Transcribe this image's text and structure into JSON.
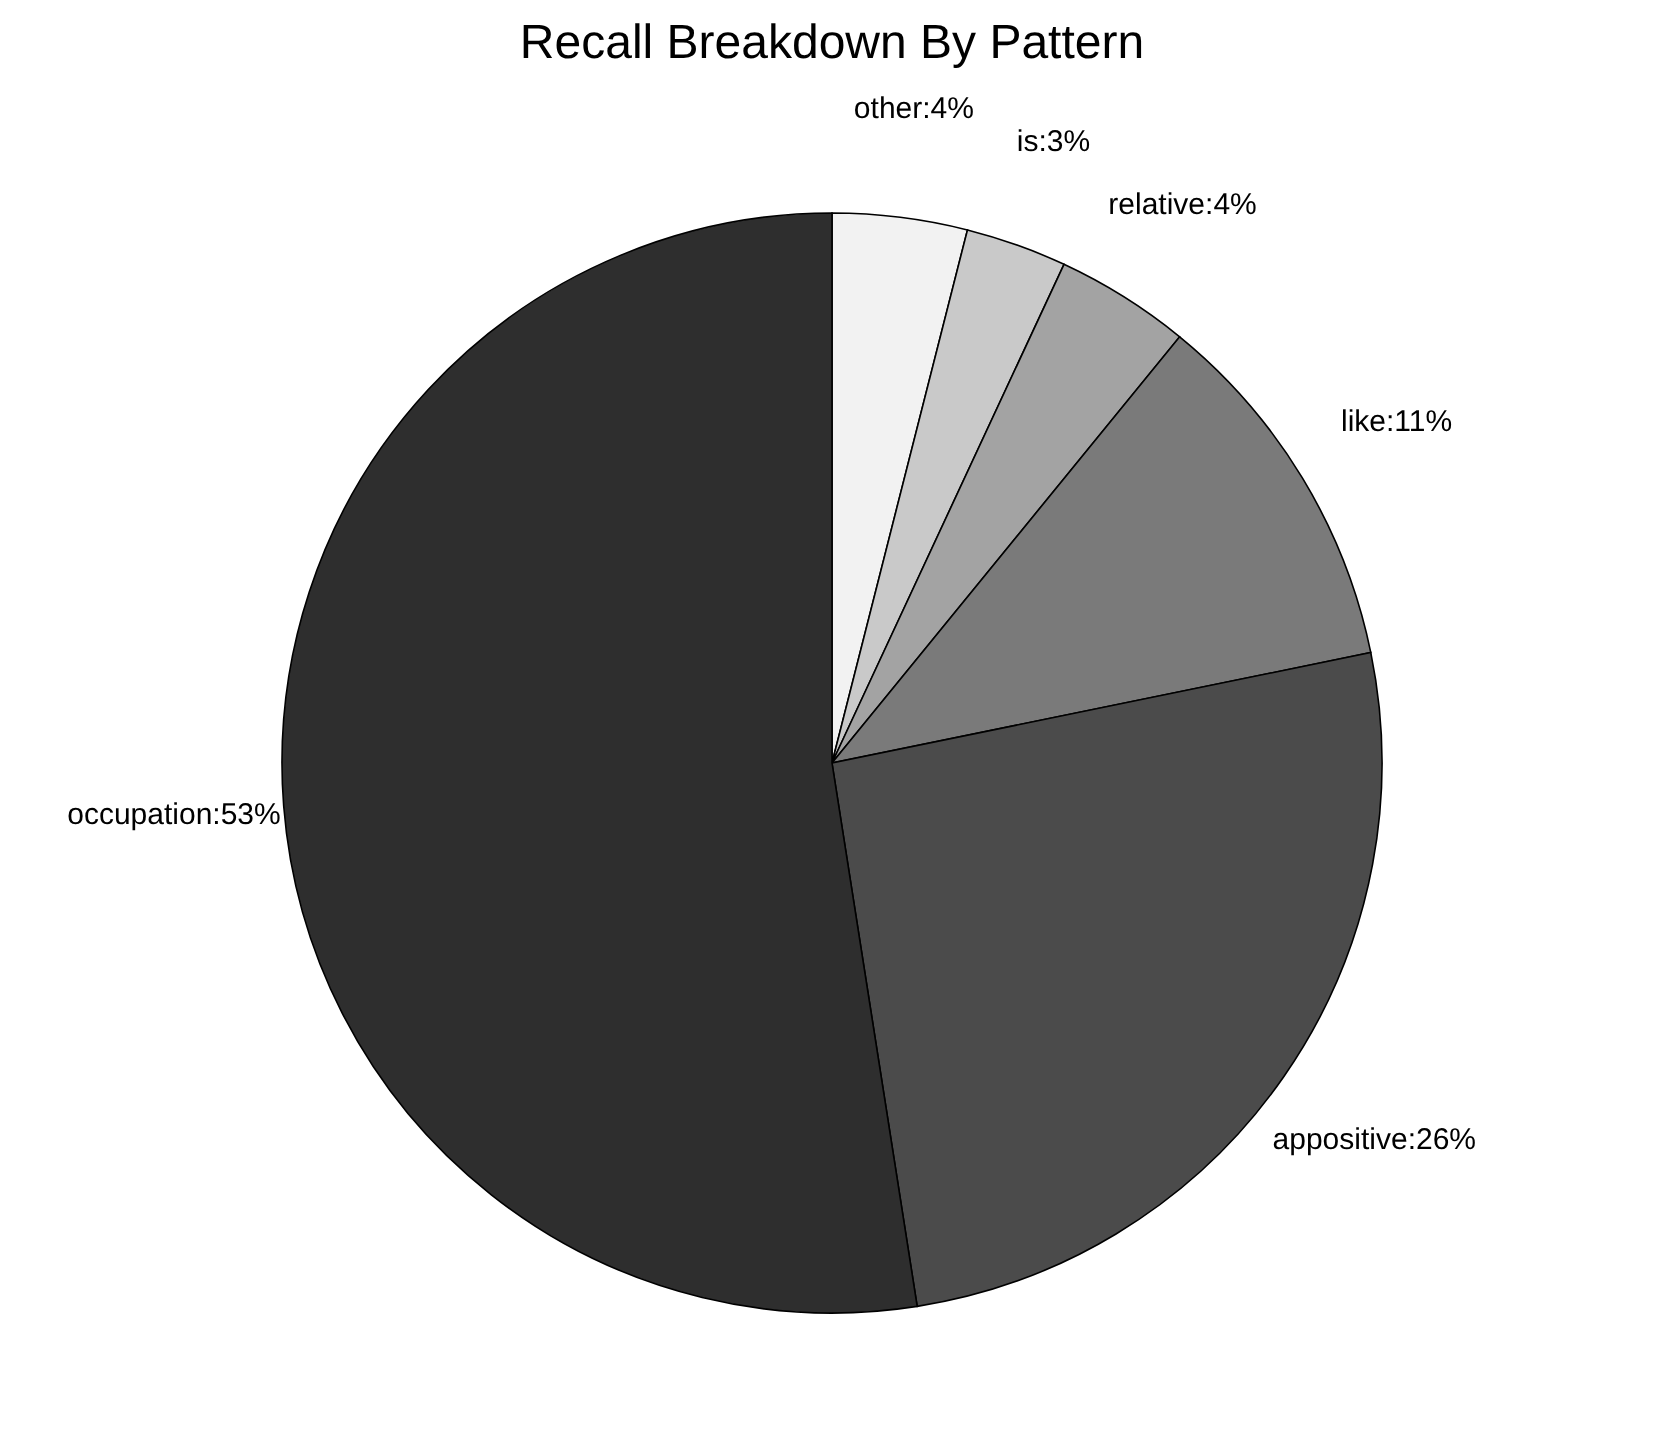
{
  "chart_data": {
    "type": "pie",
    "title": "Recall Breakdown By Pattern",
    "categories": [
      "other",
      "is",
      "relative",
      "like",
      "appositive",
      "occupation"
    ],
    "values": [
      4,
      3,
      4,
      11,
      26,
      53
    ],
    "colors": [
      "#f2f2f2",
      "#c9c9c9",
      "#a3a3a3",
      "#7a7a7a",
      "#4b4b4b",
      "#2e2e2e"
    ],
    "value_labels": [
      "4%",
      "3%",
      "4%",
      "11%",
      "26%",
      "53%"
    ],
    "legend": false
  }
}
